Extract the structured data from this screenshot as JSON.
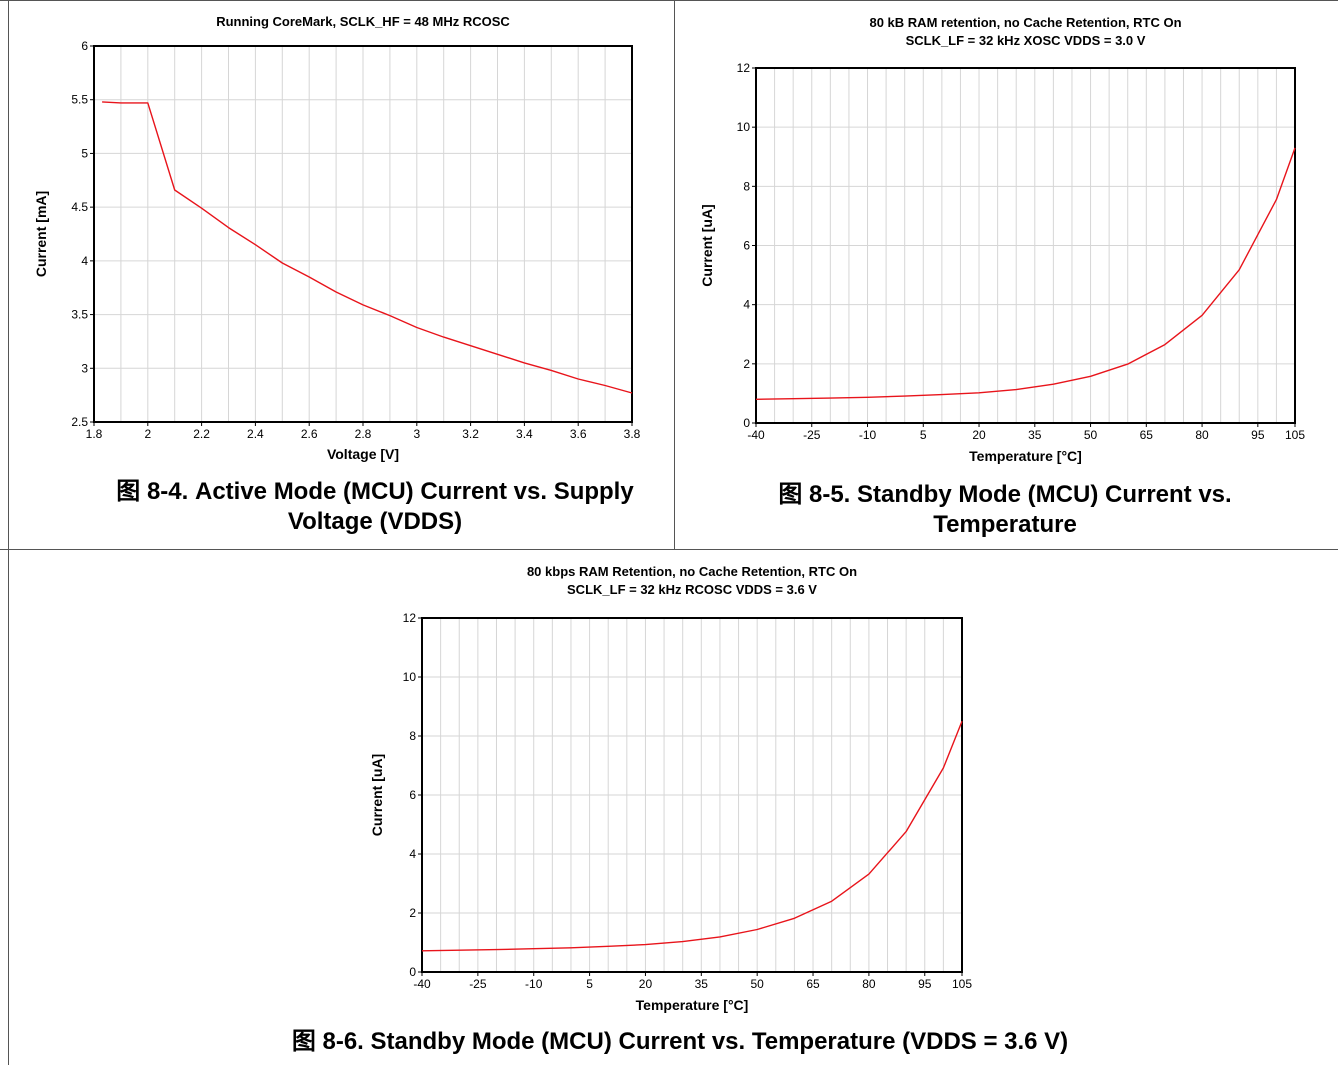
{
  "chart_data": [
    {
      "type": "line",
      "title": "Running CoreMark, SCLK_HF  = 48 MHz RCOSC",
      "subtitle": "",
      "xlabel": "Voltage [V]",
      "ylabel": "Current [mA]",
      "xlim": [
        1.8,
        3.8
      ],
      "ylim": [
        2.5,
        6
      ],
      "xticks": [
        1.8,
        2,
        2.2,
        2.4,
        2.6,
        2.8,
        3,
        3.2,
        3.4,
        3.6,
        3.8
      ],
      "xtick_labels": [
        "1.8",
        "2",
        "2.2",
        "2.4",
        "2.6",
        "2.8",
        "3",
        "3.2",
        "3.4",
        "3.6",
        "3.8"
      ],
      "yticks": [
        2.5,
        3,
        3.5,
        4,
        4.5,
        5,
        5.5,
        6
      ],
      "ytick_labels": [
        "2.5",
        "3",
        "3.5",
        "4",
        "4.5",
        "5",
        "5.5",
        "6"
      ],
      "minor_x_grid": 0.1,
      "grid": true,
      "series": [
        {
          "name": "",
          "color": "#e8141b",
          "x": [
            1.83,
            1.9,
            2.0,
            2.1,
            2.2,
            2.3,
            2.4,
            2.5,
            2.6,
            2.7,
            2.8,
            2.9,
            3.0,
            3.1,
            3.2,
            3.3,
            3.4,
            3.5,
            3.6,
            3.7,
            3.8
          ],
          "y": [
            5.48,
            5.47,
            5.47,
            4.66,
            4.49,
            4.31,
            4.15,
            3.98,
            3.85,
            3.71,
            3.59,
            3.49,
            3.38,
            3.29,
            3.21,
            3.13,
            3.05,
            2.98,
            2.9,
            2.84,
            2.77
          ]
        }
      ]
    },
    {
      "type": "line",
      "title": "80 kB RAM retention, no Cache Retention, RTC On",
      "subtitle": "SCLK_LF = 32 kHz XOSC VDDS = 3.0 V",
      "xlabel": "Temperature [°C]",
      "ylabel": "Current [uA]",
      "xlim": [
        -40,
        105
      ],
      "ylim": [
        0,
        12
      ],
      "xticks": [
        -40,
        -25,
        -10,
        5,
        20,
        35,
        50,
        65,
        80,
        95,
        105
      ],
      "xtick_labels": [
        "-40",
        "-25",
        "-10",
        "5",
        "20",
        "35",
        "50",
        "65",
        "80",
        "95",
        "105"
      ],
      "yticks": [
        0,
        2,
        4,
        6,
        8,
        10,
        12
      ],
      "ytick_labels": [
        "0",
        "2",
        "4",
        "6",
        "8",
        "10",
        "12"
      ],
      "minor_x_grid": 5,
      "grid": true,
      "series": [
        {
          "name": "",
          "color": "#e8141b",
          "x": [
            -40,
            -30,
            -20,
            -10,
            0,
            10,
            20,
            30,
            40,
            50,
            60,
            70,
            80,
            90,
            100,
            105
          ],
          "y": [
            0.8,
            0.82,
            0.84,
            0.87,
            0.91,
            0.96,
            1.02,
            1.13,
            1.31,
            1.58,
            1.99,
            2.65,
            3.64,
            5.18,
            7.55,
            9.3
          ]
        }
      ]
    },
    {
      "type": "line",
      "title": "80 kbps RAM Retention, no Cache Retention, RTC On",
      "subtitle": "SCLK_LF = 32 kHz RCOSC VDDS = 3.6 V",
      "xlabel": "Temperature [°C]",
      "ylabel": "Current [uA]",
      "xlim": [
        -40,
        105
      ],
      "ylim": [
        0,
        12
      ],
      "xticks": [
        -40,
        -25,
        -10,
        5,
        20,
        35,
        50,
        65,
        80,
        95,
        105
      ],
      "xtick_labels": [
        "-40",
        "-25",
        "-10",
        "5",
        "20",
        "35",
        "50",
        "65",
        "80",
        "95",
        "105"
      ],
      "yticks": [
        0,
        2,
        4,
        6,
        8,
        10,
        12
      ],
      "ytick_labels": [
        "0",
        "2",
        "4",
        "6",
        "8",
        "10",
        "12"
      ],
      "minor_x_grid": 5,
      "grid": true,
      "series": [
        {
          "name": "",
          "color": "#e8141b",
          "x": [
            -40,
            -30,
            -20,
            -10,
            0,
            10,
            20,
            30,
            40,
            50,
            60,
            70,
            80,
            90,
            100,
            105
          ],
          "y": [
            0.72,
            0.74,
            0.76,
            0.79,
            0.82,
            0.87,
            0.93,
            1.03,
            1.19,
            1.44,
            1.82,
            2.4,
            3.32,
            4.76,
            6.92,
            8.5
          ]
        }
      ]
    }
  ],
  "captions": [
    "图 8-4. Active Mode (MCU) Current vs. Supply Voltage (VDDS)",
    "图 8-5. Standby Mode (MCU) Current vs. Temperature",
    "图 8-6. Standby Mode (MCU) Current vs. Temperature (VDDS = 3.6 V)"
  ]
}
